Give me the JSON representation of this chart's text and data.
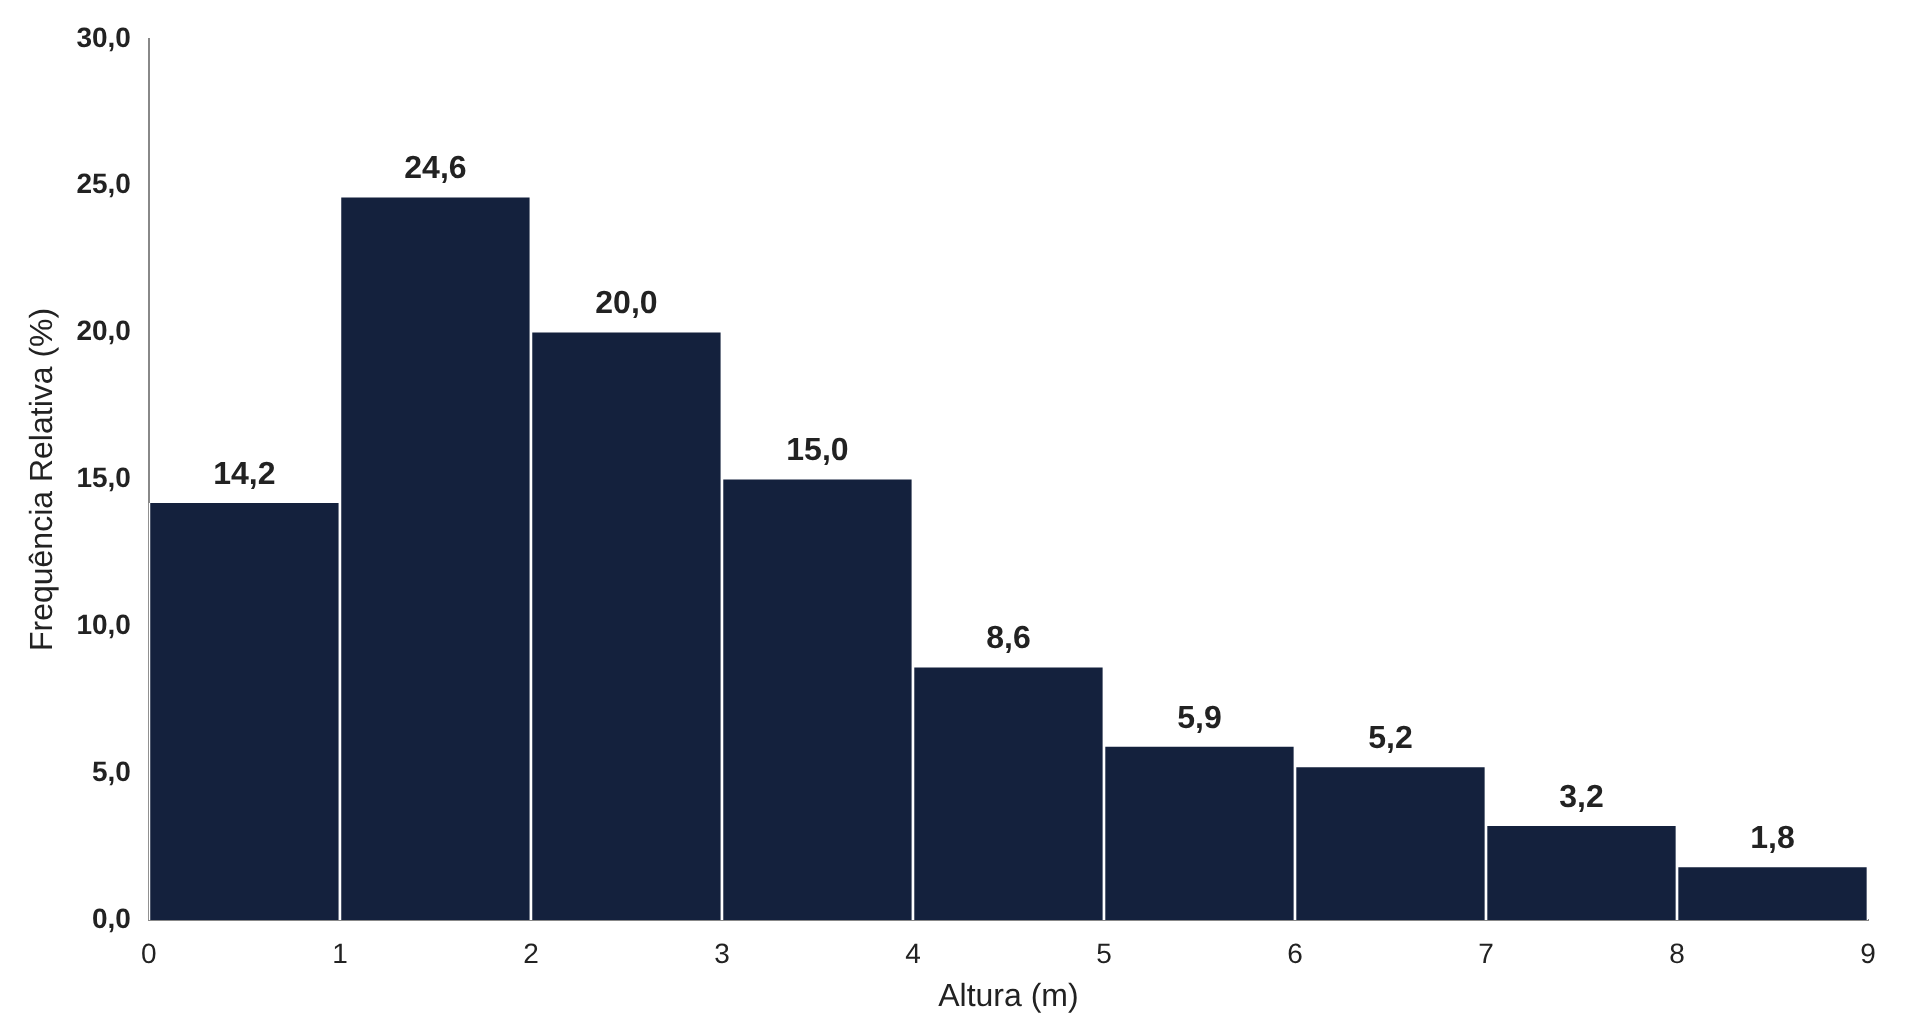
{
  "chart_data": {
    "type": "histogram",
    "xlabel": "Altura (m)",
    "ylabel": "Frequência Relativa (%)",
    "bins": [
      0,
      1,
      2,
      3,
      4,
      5,
      6,
      7,
      8,
      9
    ],
    "values": [
      14.2,
      24.6,
      20.0,
      15.0,
      8.6,
      5.9,
      5.2,
      3.2,
      1.8
    ],
    "value_labels": [
      "14,2",
      "24,6",
      "20,0",
      "15,0",
      "8,6",
      "5,9",
      "5,2",
      "3,2",
      "1,8"
    ],
    "color": "#14213d",
    "xlim": [
      0,
      9
    ],
    "xticks": [
      0,
      1,
      2,
      3,
      4,
      5,
      6,
      7,
      8,
      9
    ],
    "ylim": [
      0,
      30
    ],
    "yticks": [
      {
        "value": 0,
        "label": "0,0"
      },
      {
        "value": 5,
        "label": "5,0"
      },
      {
        "value": 10,
        "label": "10,0"
      },
      {
        "value": 15,
        "label": "15,0"
      },
      {
        "value": 20,
        "label": "20,0"
      },
      {
        "value": 25,
        "label": "25,0"
      },
      {
        "value": 30,
        "label": "30,0"
      }
    ]
  }
}
